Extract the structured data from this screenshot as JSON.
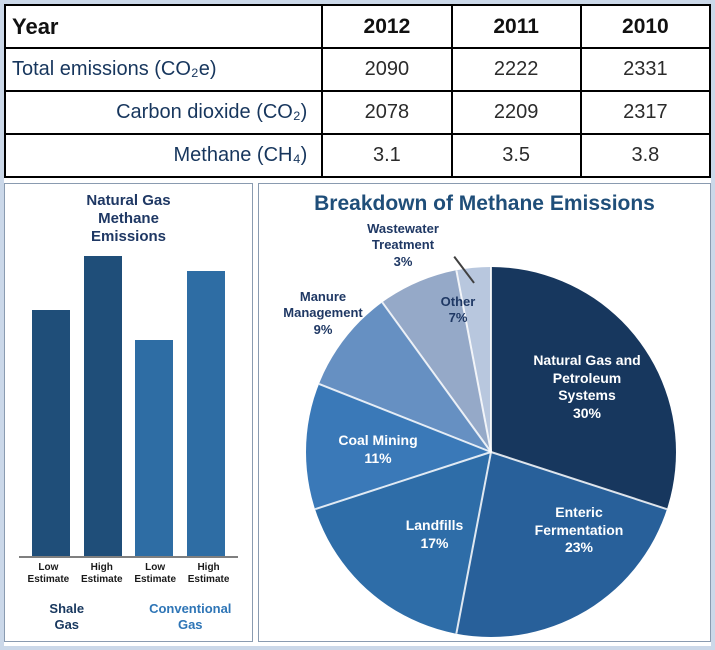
{
  "chart_data": [
    {
      "type": "table",
      "columns": [
        "Year",
        "2012",
        "2011",
        "2010"
      ],
      "rows": [
        {
          "label": "Total emissions (CO₂e)",
          "values": [
            "2090",
            "2222",
            "2331"
          ]
        },
        {
          "label": "Carbon dioxide (CO₂)",
          "values": [
            "2078",
            "2209",
            "2317"
          ]
        },
        {
          "label": "Methane (CH₄)",
          "values": [
            "3.1",
            "3.5",
            "3.8"
          ]
        }
      ]
    },
    {
      "type": "bar",
      "title": "Natural Gas Methane Emissions",
      "categories": [
        "Low Estimate",
        "High Estimate",
        "Low Estimate",
        "High Estimate"
      ],
      "groups": [
        {
          "label": "Shale Gas",
          "color": "#17375E"
        },
        {
          "label": "Conventional Gas",
          "color": "#2E75B6"
        }
      ],
      "values": [
        82,
        100,
        72,
        95
      ],
      "values_note": "relative bar heights as % of tallest bar; chart displays no numeric axis",
      "bar_colors": [
        "#1F4E79",
        "#1F4E79",
        "#2E6DA4",
        "#2E6DA4"
      ],
      "xlabel": "",
      "ylabel": ""
    },
    {
      "type": "pie",
      "title": "Breakdown of Methane Emissions",
      "start_angle_deg": 0,
      "direction": "clockwise",
      "slices": [
        {
          "label": "Natural Gas and Petroleum Systems",
          "pct_label": "30%",
          "value": 30,
          "color": "#17375E",
          "label_color": "#FFFFFF"
        },
        {
          "label": "Enteric Fermentation",
          "pct_label": "23%",
          "value": 23,
          "color": "#28609A",
          "label_color": "#FFFFFF"
        },
        {
          "label": "Landfills",
          "pct_label": "17%",
          "value": 17,
          "color": "#2E6DA8",
          "label_color": "#FFFFFF"
        },
        {
          "label": "Coal Mining",
          "pct_label": "11%",
          "value": 11,
          "color": "#3A79B8",
          "label_color": "#FFFFFF"
        },
        {
          "label": "Manure Management",
          "pct_label": "9%",
          "value": 9,
          "color": "#6690C2",
          "label_color": "#1F3864"
        },
        {
          "label": "Other",
          "pct_label": "7%",
          "value": 7,
          "color": "#95A9C8",
          "label_color": "#1F3864"
        },
        {
          "label": "Wastewater Treatment",
          "pct_label": "3%",
          "value": 3,
          "color": "#B8C7DE",
          "label_color": "#1F3864"
        }
      ]
    }
  ]
}
